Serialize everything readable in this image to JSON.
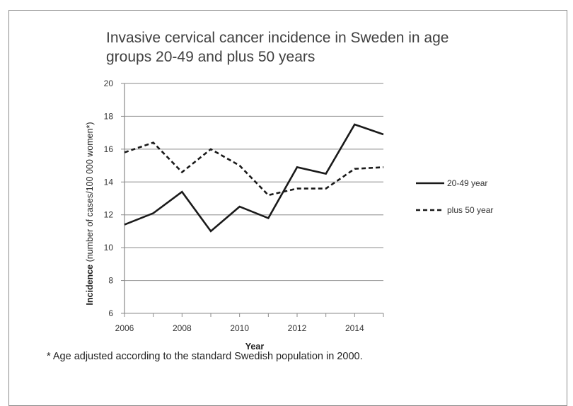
{
  "chart_data": {
    "type": "line",
    "title": "Invasive cervical cancer incidence in Sweden in age groups 20-49 and plus 50 years",
    "title_lines": [
      "Invasive cervical cancer incidence in Sweden in age",
      "groups 20-49 and plus 50 years"
    ],
    "xlabel": "Year",
    "ylabel_bold": "Incidence",
    "ylabel_rest": " (number of cases/100 000 women*)",
    "x": [
      2006,
      2007,
      2008,
      2009,
      2010,
      2011,
      2012,
      2013,
      2014,
      2015
    ],
    "x_ticks": [
      "2006",
      "2008",
      "2010",
      "2012",
      "2014"
    ],
    "x_tick_values": [
      2006,
      2008,
      2010,
      2012,
      2014
    ],
    "xlim": [
      2006,
      2015
    ],
    "ylim": [
      6,
      20
    ],
    "y_ticks": [
      "6",
      "8",
      "10",
      "12",
      "14",
      "16",
      "18",
      "20"
    ],
    "y_tick_values": [
      6,
      8,
      10,
      12,
      14,
      16,
      18,
      20
    ],
    "grid": true,
    "legend_position": "right",
    "series": [
      {
        "name": "20-49 year",
        "style": "solid",
        "color": "#1a1a1a",
        "values": [
          11.4,
          12.1,
          13.4,
          11.0,
          12.5,
          11.8,
          14.9,
          14.5,
          17.5,
          16.9
        ]
      },
      {
        "name": "plus 50 year",
        "style": "dashed",
        "color": "#1a1a1a",
        "values": [
          15.8,
          16.4,
          14.6,
          16.0,
          15.0,
          13.2,
          13.6,
          13.6,
          14.8,
          14.9
        ]
      }
    ]
  },
  "footnote": "* Age adjusted according to the standard Swedish population in 2000."
}
